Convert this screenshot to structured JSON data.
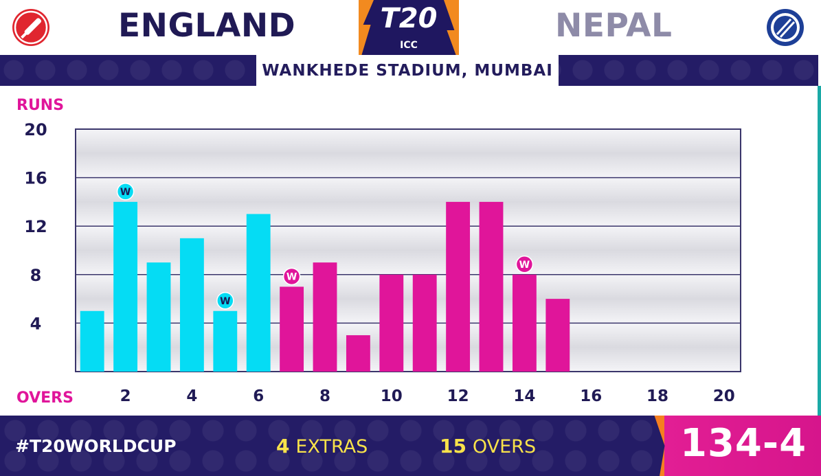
{
  "header": {
    "team_a": "ENGLAND",
    "team_b": "NEPAL",
    "logo_main": "T20",
    "logo_sub": "ICC",
    "venue": "WANKHEDE STADIUM, MUMBAI",
    "icons": {
      "team_a": "cricket-bat-icon",
      "team_b": "cricket-ball-icon"
    }
  },
  "footer": {
    "hashtag": "#T20WORLDCUP",
    "extras_value": "4",
    "extras_label": "EXTRAS",
    "overs_value": "15",
    "overs_label": "OVERS",
    "score": "134-4"
  },
  "colors": {
    "powerplay": "#05dcf4",
    "post_powerplay": "#e0159a",
    "navy": "#241c66",
    "accent_orange": "#f57f20"
  },
  "chart_data": {
    "type": "bar",
    "ylabel": "RUNS",
    "xlabel": "OVERS",
    "ylim": [
      0,
      20
    ],
    "xlim": [
      0,
      20
    ],
    "y_ticks": [
      4,
      8,
      12,
      16,
      20
    ],
    "x_ticks": [
      2,
      4,
      6,
      8,
      10,
      12,
      14,
      16,
      18,
      20
    ],
    "grid": true,
    "legend": "none",
    "wicket_marker": "W",
    "bars": [
      {
        "over": 1,
        "runs": 5,
        "phase": "powerplay",
        "wicket": false
      },
      {
        "over": 2,
        "runs": 14,
        "phase": "powerplay",
        "wicket": true
      },
      {
        "over": 3,
        "runs": 9,
        "phase": "powerplay",
        "wicket": false
      },
      {
        "over": 4,
        "runs": 11,
        "phase": "powerplay",
        "wicket": false
      },
      {
        "over": 5,
        "runs": 5,
        "phase": "powerplay",
        "wicket": true
      },
      {
        "over": 6,
        "runs": 13,
        "phase": "powerplay",
        "wicket": false
      },
      {
        "over": 7,
        "runs": 7,
        "phase": "post_powerplay",
        "wicket": true
      },
      {
        "over": 8,
        "runs": 9,
        "phase": "post_powerplay",
        "wicket": false
      },
      {
        "over": 9,
        "runs": 3,
        "phase": "post_powerplay",
        "wicket": false
      },
      {
        "over": 10,
        "runs": 8,
        "phase": "post_powerplay",
        "wicket": false
      },
      {
        "over": 11,
        "runs": 8,
        "phase": "post_powerplay",
        "wicket": false
      },
      {
        "over": 12,
        "runs": 14,
        "phase": "post_powerplay",
        "wicket": false
      },
      {
        "over": 13,
        "runs": 14,
        "phase": "post_powerplay",
        "wicket": false
      },
      {
        "over": 14,
        "runs": 8,
        "phase": "post_powerplay",
        "wicket": true
      },
      {
        "over": 15,
        "runs": 6,
        "phase": "post_powerplay",
        "wicket": false
      }
    ]
  }
}
